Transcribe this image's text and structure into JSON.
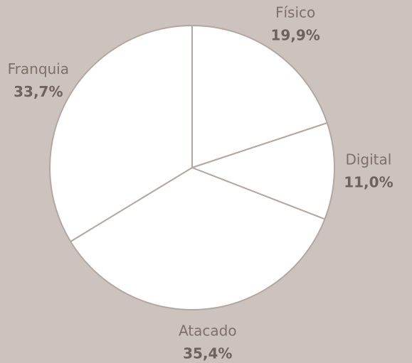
{
  "chart_data": {
    "type": "pie",
    "categories": [
      "Físico",
      "Digital",
      "Atacado",
      "Franquia"
    ],
    "values": [
      19.9,
      11.0,
      35.4,
      33.7
    ],
    "value_labels": [
      "19,9%",
      "11,0%",
      "35,4%",
      "33,7%"
    ],
    "color": "#ffffff",
    "edge_color": "#b3a7a1",
    "start_angle": 0,
    "direction": "clockwise"
  }
}
